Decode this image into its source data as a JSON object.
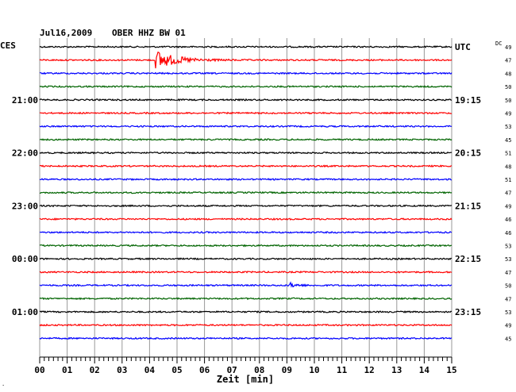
{
  "header": {
    "date": "Jul16,2009",
    "station": "OBER HHZ BW 01",
    "left_tz": "CES",
    "right_tz": "UTC",
    "dc_label": "DC"
  },
  "chart_data": {
    "type": "line",
    "xlabel": "Zeit [min]",
    "xlim": [
      0,
      15
    ],
    "x_ticks": [
      "00",
      "01",
      "02",
      "03",
      "04",
      "05",
      "06",
      "07",
      "08",
      "09",
      "10",
      "11",
      "12",
      "13",
      "14",
      "15"
    ],
    "trace_colors": [
      "#000000",
      "#ff0000",
      "#0000ff",
      "#006400"
    ],
    "traces": 23,
    "left_hour_labels": [
      {
        "trace": 4,
        "label": "21:00"
      },
      {
        "trace": 8,
        "label": "22:00"
      },
      {
        "trace": 12,
        "label": "23:00"
      },
      {
        "trace": 16,
        "label": "00:00"
      },
      {
        "trace": 20,
        "label": "01:00"
      }
    ],
    "right_hour_labels": [
      {
        "trace": 0,
        "label": "UTC"
      },
      {
        "trace": 4,
        "label": "19:15"
      },
      {
        "trace": 8,
        "label": "20:15"
      },
      {
        "trace": 12,
        "label": "21:15"
      },
      {
        "trace": 16,
        "label": "22:15"
      },
      {
        "trace": 20,
        "label": "23:15"
      }
    ],
    "dc_values": [
      "49",
      "47",
      "48",
      "50",
      "50",
      "49",
      "53",
      "45",
      "51",
      "48",
      "51",
      "47",
      "49",
      "46",
      "46",
      "53",
      "53",
      "47",
      "50",
      "47",
      "53",
      "49",
      "45"
    ],
    "events": [
      {
        "trace": 1,
        "start_min": 4.2,
        "peak_amplitude": "large",
        "decay_min": 2.0
      },
      {
        "trace": 18,
        "start_min": 9.1,
        "peak_amplitude": "small",
        "decay_min": 0.8
      }
    ]
  }
}
